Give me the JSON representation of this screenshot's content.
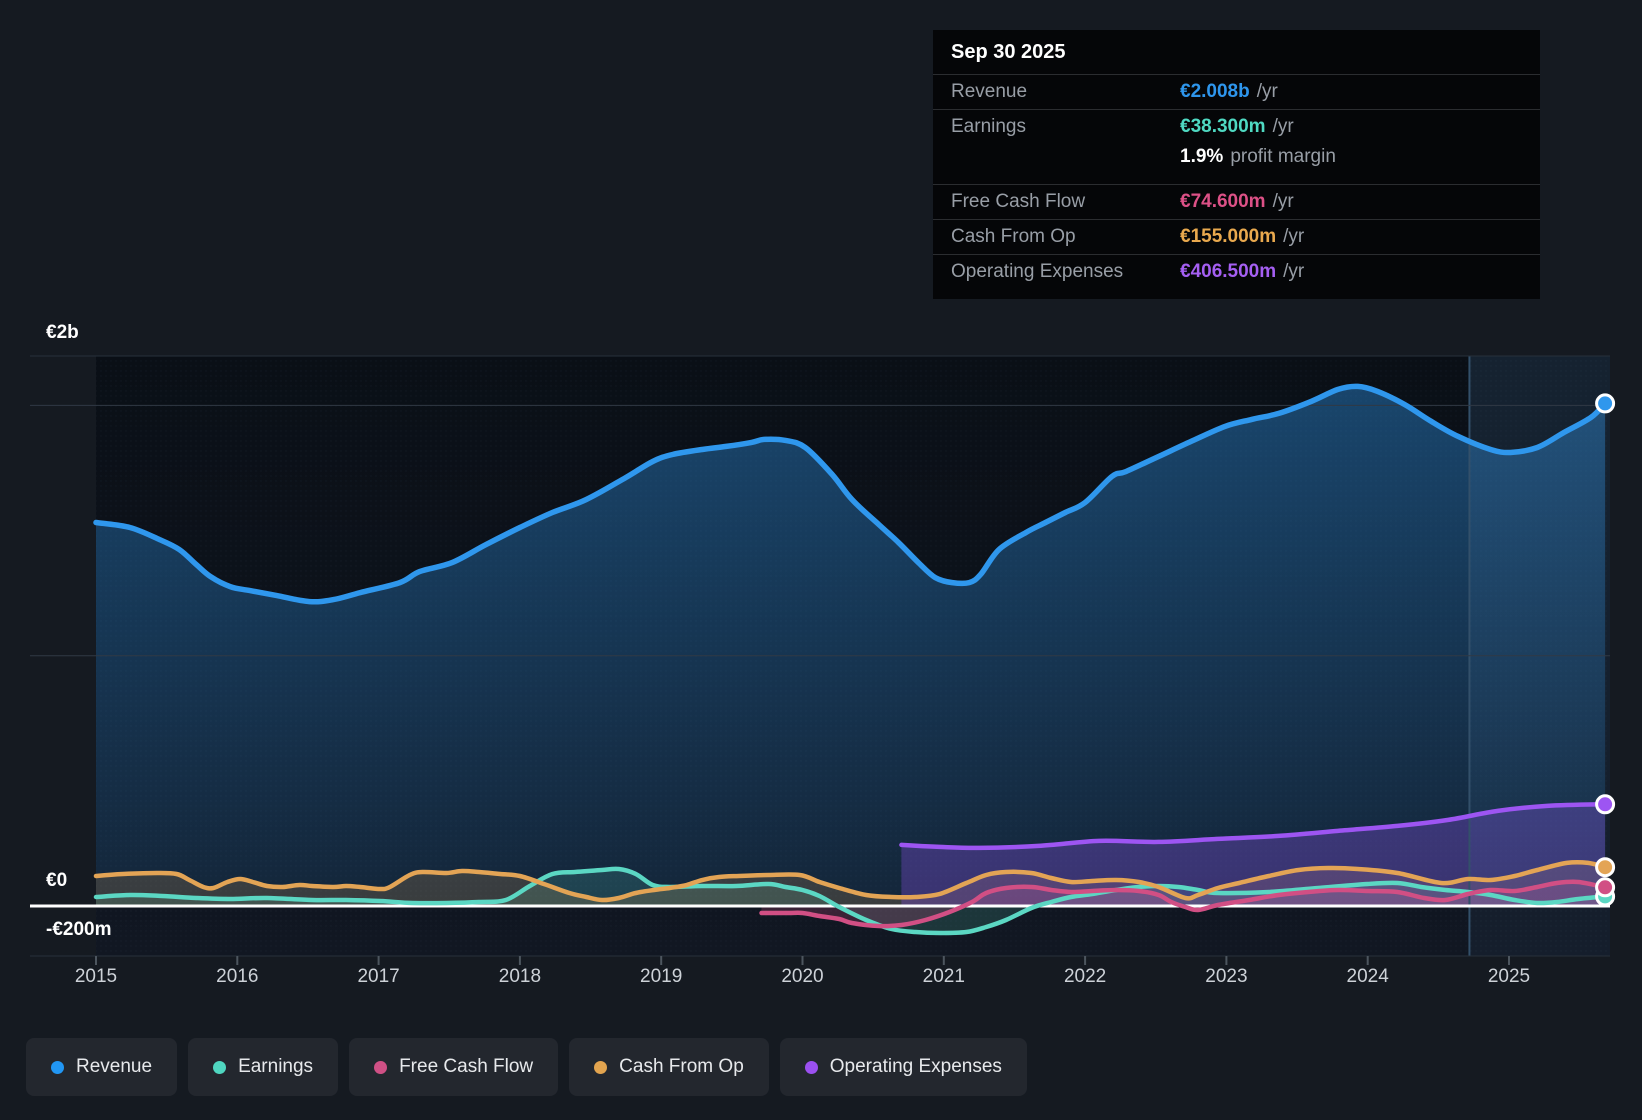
{
  "tooltip": {
    "date": "Sep 30 2025",
    "rows": [
      {
        "label": "Revenue",
        "value": "€2.008b",
        "suffix": "/yr",
        "color": "#2e96ed"
      },
      {
        "label": "Earnings",
        "value": "€38.300m",
        "suffix": "/yr",
        "color": "#4fd9c2"
      },
      {
        "label": "Free Cash Flow",
        "value": "€74.600m",
        "suffix": "/yr",
        "color": "#dd5187"
      },
      {
        "label": "Cash From Op",
        "value": "€155.000m",
        "suffix": "/yr",
        "color": "#e9a94e"
      },
      {
        "label": "Operating Expenses",
        "value": "€406.500m",
        "suffix": "/yr",
        "color": "#a55ff2"
      }
    ],
    "margin": {
      "value": "1.9%",
      "label": "profit margin"
    }
  },
  "y_axis": {
    "top_label": "€2b",
    "zero_label": "€0",
    "bottom_label": "-€200m"
  },
  "x_axis": {
    "years": [
      "2015",
      "2016",
      "2017",
      "2018",
      "2019",
      "2020",
      "2021",
      "2022",
      "2023",
      "2024",
      "2025"
    ]
  },
  "legend": [
    {
      "label": "Revenue",
      "color": "#2196f3"
    },
    {
      "label": "Earnings",
      "color": "#4fd6c0"
    },
    {
      "label": "Free Cash Flow",
      "color": "#cf5085"
    },
    {
      "label": "Cash From Op",
      "color": "#e2a44f"
    },
    {
      "label": "Operating Expenses",
      "color": "#9b50f0"
    }
  ],
  "chart_data": {
    "type": "area",
    "x_unit": "year",
    "y_unit": "EUR millions",
    "ylim": [
      -200,
      2200
    ],
    "gridline_values": [
      0,
      1000,
      2000
    ],
    "labeled_gridlines": {
      "2000": "€2b",
      "0": "€0",
      "-200": "-€200m"
    },
    "legend_position": "bottom-left",
    "highlight_band": {
      "from_year": 2024.72,
      "to_year": 2025.71
    },
    "marker_date": "Sep 30 2025",
    "series": [
      {
        "key": "revenue",
        "name": "Revenue",
        "color": "#2f97ed",
        "fill": "rgba(47,151,237,0.38)",
        "points": [
          [
            2015.0,
            1532
          ],
          [
            2015.24,
            1512
          ],
          [
            2015.45,
            1464
          ],
          [
            2015.59,
            1424
          ],
          [
            2015.71,
            1364
          ],
          [
            2015.81,
            1316
          ],
          [
            2015.95,
            1276
          ],
          [
            2016.09,
            1260
          ],
          [
            2016.28,
            1240
          ],
          [
            2016.51,
            1216
          ],
          [
            2016.68,
            1224
          ],
          [
            2016.87,
            1252
          ],
          [
            2017.15,
            1292
          ],
          [
            2017.29,
            1336
          ],
          [
            2017.52,
            1372
          ],
          [
            2017.76,
            1444
          ],
          [
            2018.0,
            1512
          ],
          [
            2018.23,
            1572
          ],
          [
            2018.47,
            1624
          ],
          [
            2018.75,
            1712
          ],
          [
            2018.94,
            1776
          ],
          [
            2019.08,
            1804
          ],
          [
            2019.29,
            1824
          ],
          [
            2019.46,
            1836
          ],
          [
            2019.64,
            1852
          ],
          [
            2019.73,
            1864
          ],
          [
            2019.88,
            1860
          ],
          [
            2020.02,
            1832
          ],
          [
            2020.21,
            1724
          ],
          [
            2020.35,
            1624
          ],
          [
            2020.54,
            1524
          ],
          [
            2020.68,
            1452
          ],
          [
            2020.82,
            1372
          ],
          [
            2020.94,
            1312
          ],
          [
            2021.06,
            1292
          ],
          [
            2021.18,
            1292
          ],
          [
            2021.26,
            1324
          ],
          [
            2021.39,
            1424
          ],
          [
            2021.58,
            1492
          ],
          [
            2021.72,
            1532
          ],
          [
            2021.86,
            1572
          ],
          [
            2022.0,
            1612
          ],
          [
            2022.19,
            1716
          ],
          [
            2022.29,
            1736
          ],
          [
            2022.52,
            1796
          ],
          [
            2022.75,
            1856
          ],
          [
            2022.99,
            1916
          ],
          [
            2023.18,
            1944
          ],
          [
            2023.37,
            1968
          ],
          [
            2023.6,
            2016
          ],
          [
            2023.79,
            2064
          ],
          [
            2023.93,
            2076
          ],
          [
            2024.07,
            2056
          ],
          [
            2024.26,
            2004
          ],
          [
            2024.45,
            1936
          ],
          [
            2024.64,
            1876
          ],
          [
            2024.87,
            1824
          ],
          [
            2025.01,
            1812
          ],
          [
            2025.2,
            1832
          ],
          [
            2025.39,
            1892
          ],
          [
            2025.58,
            1952
          ],
          [
            2025.68,
            2008
          ]
        ]
      },
      {
        "key": "earnings",
        "name": "Earnings",
        "color": "#5bd7c3",
        "fill": "rgba(91,215,195,0.16)",
        "points": [
          [
            2015.0,
            36
          ],
          [
            2015.24,
            44
          ],
          [
            2015.47,
            40
          ],
          [
            2015.71,
            32
          ],
          [
            2015.95,
            28
          ],
          [
            2016.21,
            32
          ],
          [
            2016.53,
            24
          ],
          [
            2016.77,
            24
          ],
          [
            2017.01,
            20
          ],
          [
            2017.24,
            12
          ],
          [
            2017.48,
            12
          ],
          [
            2017.71,
            16
          ],
          [
            2017.9,
            24
          ],
          [
            2018.07,
            80
          ],
          [
            2018.23,
            128
          ],
          [
            2018.39,
            136
          ],
          [
            2018.58,
            144
          ],
          [
            2018.7,
            148
          ],
          [
            2018.82,
            128
          ],
          [
            2018.94,
            84
          ],
          [
            2019.06,
            76
          ],
          [
            2019.29,
            80
          ],
          [
            2019.53,
            80
          ],
          [
            2019.76,
            88
          ],
          [
            2019.88,
            76
          ],
          [
            2020.0,
            64
          ],
          [
            2020.12,
            40
          ],
          [
            2020.26,
            -4
          ],
          [
            2020.45,
            -56
          ],
          [
            2020.63,
            -92
          ],
          [
            2020.8,
            -104
          ],
          [
            2020.97,
            -108
          ],
          [
            2021.16,
            -104
          ],
          [
            2021.3,
            -84
          ],
          [
            2021.44,
            -56
          ],
          [
            2021.62,
            -8
          ],
          [
            2021.76,
            16
          ],
          [
            2021.9,
            36
          ],
          [
            2022.05,
            48
          ],
          [
            2022.22,
            64
          ],
          [
            2022.38,
            76
          ],
          [
            2022.52,
            80
          ],
          [
            2022.66,
            76
          ],
          [
            2022.8,
            64
          ],
          [
            2022.94,
            52
          ],
          [
            2023.3,
            56
          ],
          [
            2023.65,
            72
          ],
          [
            2024.0,
            88
          ],
          [
            2024.21,
            92
          ],
          [
            2024.38,
            76
          ],
          [
            2024.55,
            64
          ],
          [
            2024.71,
            56
          ],
          [
            2024.87,
            44
          ],
          [
            2025.04,
            24
          ],
          [
            2025.2,
            12
          ],
          [
            2025.34,
            16
          ],
          [
            2025.49,
            28
          ],
          [
            2025.68,
            38.3
          ]
        ]
      },
      {
        "key": "fcf",
        "name": "Free Cash Flow",
        "color": "#d14f84",
        "fill": "rgba(209,79,132,0.22)",
        "points": [
          [
            2019.71,
            -28
          ],
          [
            2019.9,
            -28
          ],
          [
            2020.0,
            -28
          ],
          [
            2020.12,
            -40
          ],
          [
            2020.26,
            -52
          ],
          [
            2020.35,
            -68
          ],
          [
            2020.54,
            -80
          ],
          [
            2020.7,
            -76
          ],
          [
            2020.87,
            -56
          ],
          [
            2021.04,
            -24
          ],
          [
            2021.2,
            16
          ],
          [
            2021.3,
            52
          ],
          [
            2021.44,
            72
          ],
          [
            2021.62,
            76
          ],
          [
            2021.76,
            64
          ],
          [
            2021.9,
            56
          ],
          [
            2022.05,
            60
          ],
          [
            2022.22,
            64
          ],
          [
            2022.38,
            60
          ],
          [
            2022.52,
            44
          ],
          [
            2022.61,
            16
          ],
          [
            2022.71,
            -4
          ],
          [
            2022.8,
            -16
          ],
          [
            2022.94,
            4
          ],
          [
            2023.16,
            24
          ],
          [
            2023.37,
            44
          ],
          [
            2023.58,
            56
          ],
          [
            2023.79,
            64
          ],
          [
            2024.0,
            60
          ],
          [
            2024.21,
            56
          ],
          [
            2024.4,
            32
          ],
          [
            2024.55,
            24
          ],
          [
            2024.71,
            48
          ],
          [
            2024.87,
            64
          ],
          [
            2025.04,
            60
          ],
          [
            2025.2,
            76
          ],
          [
            2025.34,
            92
          ],
          [
            2025.49,
            96
          ],
          [
            2025.68,
            74.6
          ]
        ]
      },
      {
        "key": "cashop",
        "name": "Cash From Op",
        "color": "#e3a455",
        "fill": "rgba(227,164,85,0.18)",
        "points": [
          [
            2015.0,
            120
          ],
          [
            2015.19,
            128
          ],
          [
            2015.43,
            132
          ],
          [
            2015.57,
            128
          ],
          [
            2015.66,
            104
          ],
          [
            2015.76,
            76
          ],
          [
            2015.83,
            72
          ],
          [
            2015.93,
            96
          ],
          [
            2016.02,
            108
          ],
          [
            2016.11,
            96
          ],
          [
            2016.21,
            80
          ],
          [
            2016.32,
            76
          ],
          [
            2016.44,
            84
          ],
          [
            2016.53,
            80
          ],
          [
            2016.68,
            76
          ],
          [
            2016.77,
            80
          ],
          [
            2016.87,
            76
          ],
          [
            2017.01,
            68
          ],
          [
            2017.08,
            76
          ],
          [
            2017.22,
            124
          ],
          [
            2017.31,
            136
          ],
          [
            2017.48,
            132
          ],
          [
            2017.59,
            140
          ],
          [
            2017.71,
            136
          ],
          [
            2017.86,
            128
          ],
          [
            2018.0,
            120
          ],
          [
            2018.17,
            88
          ],
          [
            2018.35,
            52
          ],
          [
            2018.47,
            36
          ],
          [
            2018.58,
            24
          ],
          [
            2018.7,
            32
          ],
          [
            2018.82,
            52
          ],
          [
            2018.95,
            64
          ],
          [
            2019.06,
            72
          ],
          [
            2019.18,
            84
          ],
          [
            2019.29,
            104
          ],
          [
            2019.41,
            116
          ],
          [
            2019.55,
            120
          ],
          [
            2019.76,
            124
          ],
          [
            2019.98,
            124
          ],
          [
            2020.12,
            96
          ],
          [
            2020.26,
            72
          ],
          [
            2020.45,
            44
          ],
          [
            2020.63,
            36
          ],
          [
            2020.8,
            36
          ],
          [
            2020.97,
            48
          ],
          [
            2021.16,
            92
          ],
          [
            2021.3,
            124
          ],
          [
            2021.44,
            136
          ],
          [
            2021.62,
            132
          ],
          [
            2021.76,
            112
          ],
          [
            2021.9,
            96
          ],
          [
            2022.05,
            100
          ],
          [
            2022.22,
            104
          ],
          [
            2022.38,
            96
          ],
          [
            2022.52,
            76
          ],
          [
            2022.71,
            32
          ],
          [
            2022.8,
            44
          ],
          [
            2022.94,
            72
          ],
          [
            2023.09,
            92
          ],
          [
            2023.3,
            120
          ],
          [
            2023.51,
            144
          ],
          [
            2023.72,
            152
          ],
          [
            2023.93,
            148
          ],
          [
            2024.21,
            132
          ],
          [
            2024.52,
            92
          ],
          [
            2024.71,
            108
          ],
          [
            2024.87,
            104
          ],
          [
            2025.04,
            120
          ],
          [
            2025.2,
            144
          ],
          [
            2025.41,
            172
          ],
          [
            2025.56,
            172
          ],
          [
            2025.68,
            155
          ]
        ]
      },
      {
        "key": "opex",
        "name": "Operating Expenses",
        "color": "#9d55f2",
        "fill": "rgba(140,80,230,0.32)",
        "points": [
          [
            2020.7,
            244
          ],
          [
            2020.97,
            236
          ],
          [
            2021.25,
            232
          ],
          [
            2021.67,
            240
          ],
          [
            2022.1,
            260
          ],
          [
            2022.52,
            256
          ],
          [
            2022.94,
            268
          ],
          [
            2023.37,
            280
          ],
          [
            2023.79,
            300
          ],
          [
            2024.21,
            320
          ],
          [
            2024.57,
            344
          ],
          [
            2024.92,
            380
          ],
          [
            2025.27,
            400
          ],
          [
            2025.68,
            406.5
          ]
        ]
      }
    ]
  }
}
